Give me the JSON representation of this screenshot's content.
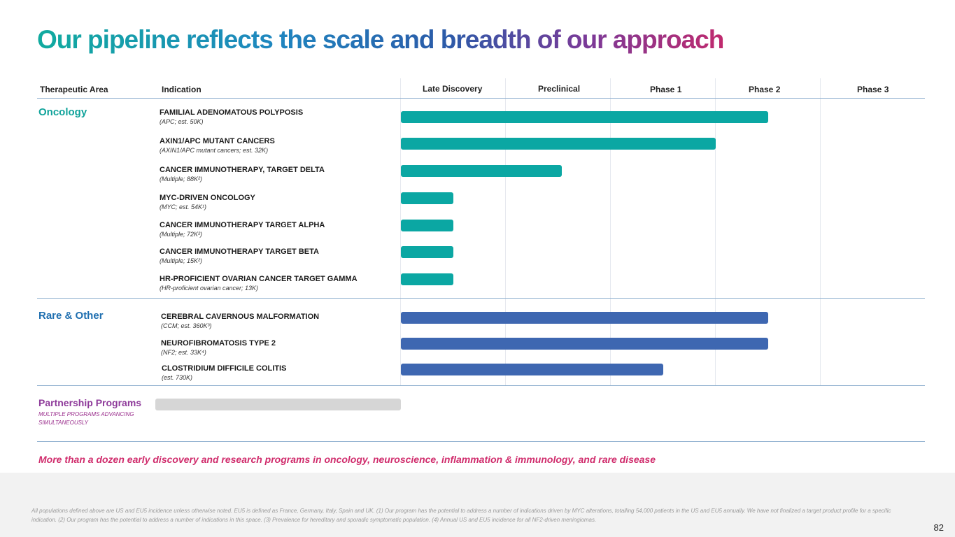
{
  "title": "Our pipeline reflects the scale and breadth of our approach",
  "headers": {
    "area": "Therapeutic Area",
    "indication": "Indication",
    "stages": [
      "Late Discovery",
      "Preclinical",
      "Phase 1",
      "Phase 2",
      "Phase 3"
    ]
  },
  "chart_data": {
    "type": "bar",
    "orientation": "horizontal",
    "title": "Our pipeline reflects the scale and breadth of our approach",
    "stages": [
      "Late Discovery",
      "Preclinical",
      "Phase 1",
      "Phase 2",
      "Phase 3"
    ],
    "xlim": [
      0,
      5
    ],
    "xunit": "stage columns from start of Late Discovery",
    "groups": [
      {
        "area": "Oncology",
        "color": "#0ba7a3",
        "programs": [
          {
            "name": "FAMILIAL ADENOMATOUS POLYPOSIS",
            "sub": "(APC; est. 50K)",
            "progress": 3.5
          },
          {
            "name": "AXIN1/APC MUTANT CANCERS",
            "sub": "(AXIN1/APC mutant cancers; est. 32K)",
            "progress": 3.0
          },
          {
            "name": "CANCER IMMUNOTHERAPY, TARGET DELTA",
            "sub": "(Multiple; 88K²)",
            "progress": 1.53
          },
          {
            "name": "MYC-DRIVEN ONCOLOGY",
            "sub": "(MYC; est. 54K¹)",
            "progress": 0.5
          },
          {
            "name": "CANCER IMMUNOTHERAPY TARGET ALPHA",
            "sub": "(Multiple; 72K²)",
            "progress": 0.5
          },
          {
            "name": "CANCER IMMUNOTHERAPY TARGET BETA",
            "sub": "(Multiple; 15K²)",
            "progress": 0.5
          },
          {
            "name": "HR-PROFICIENT OVARIAN CANCER TARGET GAMMA",
            "sub": "(HR-proficient ovarian cancer; 13K)",
            "progress": 0.5
          }
        ]
      },
      {
        "area": "Rare & Other",
        "color": "#3e67b1",
        "programs": [
          {
            "name": "CEREBRAL CAVERNOUS MALFORMATION",
            "sub": "(CCM; est. 360K³)",
            "progress": 3.5
          },
          {
            "name": "NEUROFIBROMATOSIS TYPE 2",
            "sub": "(NF2; est. 33K⁴)",
            "progress": 3.5
          },
          {
            "name": "CLOSTRIDIUM DIFFICILE COLITIS",
            "sub": "(est. 730K)",
            "progress": 2.5
          }
        ]
      }
    ]
  },
  "partnership": {
    "title": "Partnership Programs",
    "subtitle": "MULTIPLE PROGRAMS ADVANCING SIMULTANEOUSLY"
  },
  "colors": {
    "oncology": "#11a39b",
    "rare": "#1f6fb0",
    "partnership": "#8e3a9a"
  },
  "callout": "More than a dozen early discovery and research programs in oncology, neuroscience, inflammation & immunology, and rare disease",
  "footnote": "All populations defined above are US and EU5 incidence unless otherwise noted. EU5 is defined as France, Germany, Italy, Spain and UK. (1) Our program has the potential to address a number of indications driven by MYC alterations, totalling 54,000 patients in the US and EU5 annually. We have not finalized a target product profile for a specific indication. (2) Our program has the potential to address a number of indications in this space. (3) Prevalence for hereditary and sporadic symptomatic population. (4) Annual US and EU5 incidence for all NF2-driven meningiomas.",
  "page_number": "82"
}
